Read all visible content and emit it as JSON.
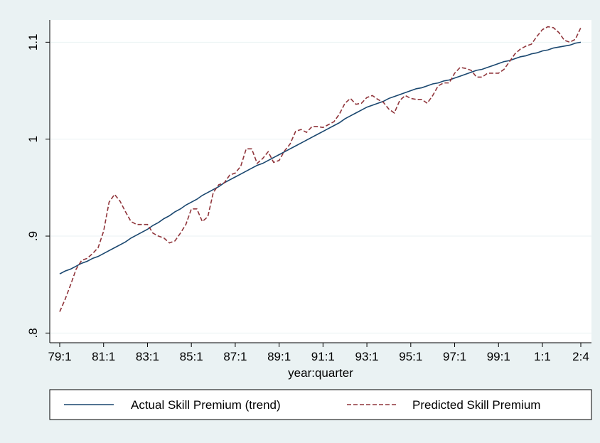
{
  "chart_data": {
    "type": "line",
    "x_label": "year:quarter",
    "categories": [
      "79:1",
      null,
      null,
      null,
      null,
      null,
      null,
      null,
      "81:1",
      null,
      null,
      null,
      null,
      null,
      null,
      null,
      "83:1",
      null,
      null,
      null,
      null,
      null,
      null,
      null,
      "85:1",
      null,
      null,
      null,
      null,
      null,
      null,
      null,
      "87:1",
      null,
      null,
      null,
      null,
      null,
      null,
      null,
      "89:1",
      null,
      null,
      null,
      null,
      null,
      null,
      null,
      "91:1",
      null,
      null,
      null,
      null,
      null,
      null,
      null,
      "93:1",
      null,
      null,
      null,
      null,
      null,
      null,
      null,
      "95:1",
      null,
      null,
      null,
      null,
      null,
      null,
      null,
      "97:1",
      null,
      null,
      null,
      null,
      null,
      null,
      null,
      "99:1",
      null,
      null,
      null,
      null,
      null,
      null,
      null,
      "1:1",
      null,
      null,
      null,
      null,
      null,
      null,
      "2:4"
    ],
    "series": [
      {
        "name": "Actual Skill Premium (trend)",
        "color": "#1a476f",
        "dashed": false,
        "values": [
          0.861,
          0.864,
          0.866,
          0.869,
          0.872,
          0.874,
          0.877,
          0.879,
          0.882,
          0.885,
          0.888,
          0.891,
          0.894,
          0.898,
          0.901,
          0.904,
          0.907,
          0.911,
          0.914,
          0.918,
          0.921,
          0.925,
          0.928,
          0.932,
          0.935,
          0.938,
          0.942,
          0.945,
          0.948,
          0.951,
          0.955,
          0.958,
          0.961,
          0.964,
          0.967,
          0.97,
          0.973,
          0.975,
          0.978,
          0.981,
          0.984,
          0.987,
          0.99,
          0.993,
          0.996,
          0.999,
          1.002,
          1.005,
          1.008,
          1.011,
          1.014,
          1.017,
          1.021,
          1.024,
          1.027,
          1.03,
          1.033,
          1.035,
          1.037,
          1.039,
          1.042,
          1.044,
          1.046,
          1.048,
          1.05,
          1.052,
          1.053,
          1.055,
          1.057,
          1.058,
          1.06,
          1.061,
          1.063,
          1.065,
          1.067,
          1.069,
          1.071,
          1.072,
          1.074,
          1.076,
          1.078,
          1.08,
          1.081,
          1.083,
          1.085,
          1.086,
          1.088,
          1.089,
          1.091,
          1.092,
          1.094,
          1.095,
          1.096,
          1.097,
          1.099,
          1.1
        ]
      },
      {
        "name": "Predicted Skill Premium",
        "color": "#90353b",
        "dashed": true,
        "values": [
          0.822,
          0.835,
          0.85,
          0.866,
          0.875,
          0.877,
          0.882,
          0.888,
          0.905,
          0.935,
          0.943,
          0.936,
          0.925,
          0.915,
          0.912,
          0.912,
          0.912,
          0.903,
          0.9,
          0.898,
          0.893,
          0.895,
          0.903,
          0.912,
          0.928,
          0.928,
          0.915,
          0.92,
          0.945,
          0.953,
          0.955,
          0.963,
          0.965,
          0.972,
          0.99,
          0.99,
          0.975,
          0.98,
          0.987,
          0.976,
          0.978,
          0.988,
          0.995,
          1.008,
          1.01,
          1.007,
          1.013,
          1.013,
          1.012,
          1.015,
          1.018,
          1.026,
          1.037,
          1.042,
          1.036,
          1.037,
          1.043,
          1.045,
          1.041,
          1.038,
          1.031,
          1.027,
          1.04,
          1.045,
          1.042,
          1.041,
          1.041,
          1.037,
          1.045,
          1.055,
          1.058,
          1.058,
          1.068,
          1.074,
          1.073,
          1.071,
          1.064,
          1.064,
          1.068,
          1.068,
          1.068,
          1.072,
          1.08,
          1.088,
          1.093,
          1.096,
          1.098,
          1.106,
          1.113,
          1.116,
          1.115,
          1.11,
          1.102,
          1.1,
          1.103,
          1.115
        ]
      }
    ],
    "ylim": [
      0.79,
      1.123
    ],
    "yticks": [
      {
        "value": 0.8,
        "label": ".8"
      },
      {
        "value": 0.9,
        "label": ".9"
      },
      1,
      1.1
    ],
    "grid": true,
    "legend": "bottom"
  }
}
